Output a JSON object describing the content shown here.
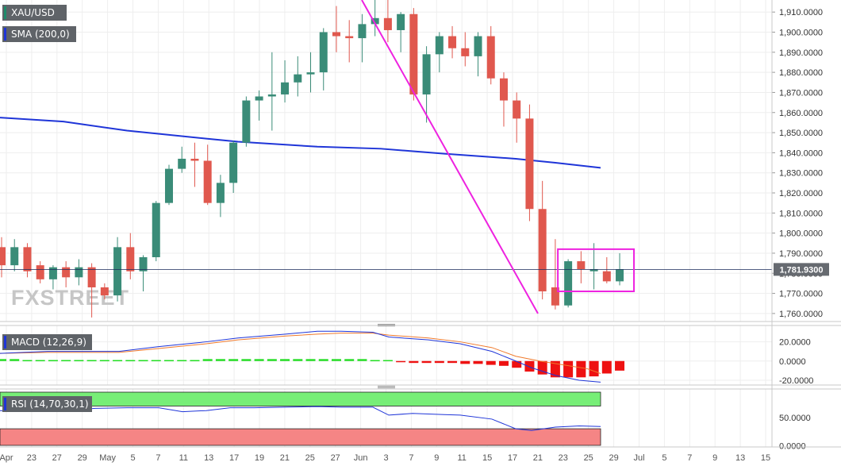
{
  "legend": {
    "symbol": "XAU/USD",
    "sma": "SMA (200,0)",
    "macd": "MACD (12,26,9)",
    "rsi": "RSI (14,70,30,1)"
  },
  "current_price_label": "1,781.9300",
  "watermark": "FXSTREET",
  "colors": {
    "up": "#3a8c78",
    "down": "#e0584e",
    "sma": "#1f35d8",
    "trendline": "#ee22e0",
    "macd_line": "#1f35d8",
    "signal_line": "#f07a2c",
    "hist_up": "#22dd22",
    "hist_down": "#ee1111",
    "rsi_line": "#1f35d8",
    "overbought_fill": "#77ee77",
    "oversold_fill": "#f58585",
    "legend_bg": "#5f6368"
  },
  "chart_data": [
    {
      "type": "candlestick",
      "symbol": "XAU/USD",
      "timeframe": "daily",
      "y_axis_ticks": [
        "1,760.0000",
        "1,770.0000",
        "1,780.0000",
        "1,790.0000",
        "1,800.0000",
        "1,810.0000",
        "1,820.0000",
        "1,830.0000",
        "1,840.0000",
        "1,850.0000",
        "1,860.0000",
        "1,870.0000",
        "1,880.0000",
        "1,890.0000",
        "1,900.0000",
        "1,910.0000"
      ],
      "ylim": [
        1756,
        1916
      ],
      "x_axis_ticks": [
        "Apr",
        "23",
        "27",
        "29",
        "May",
        "5",
        "7",
        "11",
        "13",
        "17",
        "19",
        "21",
        "25",
        "27",
        "Jun",
        "3",
        "7",
        "9",
        "11",
        "15",
        "17",
        "21",
        "23",
        "25",
        "29",
        "Jul",
        "5",
        "7",
        "9",
        "13",
        "15"
      ],
      "candles": [
        {
          "o": 1793,
          "h": 1798,
          "l": 1778,
          "c": 1784
        },
        {
          "o": 1784,
          "h": 1797,
          "l": 1781,
          "c": 1793
        },
        {
          "o": 1793,
          "h": 1795,
          "l": 1778,
          "c": 1781
        },
        {
          "o": 1784,
          "h": 1786,
          "l": 1775,
          "c": 1777
        },
        {
          "o": 1777,
          "h": 1784,
          "l": 1772,
          "c": 1783
        },
        {
          "o": 1783,
          "h": 1786,
          "l": 1773,
          "c": 1778
        },
        {
          "o": 1778,
          "h": 1787,
          "l": 1774,
          "c": 1783
        },
        {
          "o": 1783,
          "h": 1785,
          "l": 1758,
          "c": 1773
        },
        {
          "o": 1773,
          "h": 1775,
          "l": 1767,
          "c": 1769
        },
        {
          "o": 1769,
          "h": 1798,
          "l": 1766,
          "c": 1793
        },
        {
          "o": 1793,
          "h": 1800,
          "l": 1777,
          "c": 1781
        },
        {
          "o": 1781,
          "h": 1789,
          "l": 1771,
          "c": 1788
        },
        {
          "o": 1788,
          "h": 1816,
          "l": 1786,
          "c": 1815
        },
        {
          "o": 1815,
          "h": 1834,
          "l": 1814,
          "c": 1832
        },
        {
          "o": 1832,
          "h": 1843,
          "l": 1830,
          "c": 1837
        },
        {
          "o": 1837,
          "h": 1845,
          "l": 1823,
          "c": 1836
        },
        {
          "o": 1836,
          "h": 1844,
          "l": 1814,
          "c": 1815
        },
        {
          "o": 1815,
          "h": 1829,
          "l": 1808,
          "c": 1825
        },
        {
          "o": 1825,
          "h": 1846,
          "l": 1820,
          "c": 1845
        },
        {
          "o": 1845,
          "h": 1868,
          "l": 1843,
          "c": 1866
        },
        {
          "o": 1866,
          "h": 1871,
          "l": 1856,
          "c": 1868
        },
        {
          "o": 1868,
          "h": 1890,
          "l": 1851,
          "c": 1869
        },
        {
          "o": 1869,
          "h": 1886,
          "l": 1865,
          "c": 1875
        },
        {
          "o": 1875,
          "h": 1888,
          "l": 1868,
          "c": 1879
        },
        {
          "o": 1879,
          "h": 1890,
          "l": 1870,
          "c": 1880
        },
        {
          "o": 1880,
          "h": 1902,
          "l": 1871,
          "c": 1900
        },
        {
          "o": 1900,
          "h": 1913,
          "l": 1890,
          "c": 1898
        },
        {
          "o": 1898,
          "h": 1906,
          "l": 1885,
          "c": 1897
        },
        {
          "o": 1897,
          "h": 1909,
          "l": 1885,
          "c": 1904
        },
        {
          "o": 1904,
          "h": 1916,
          "l": 1898,
          "c": 1907
        },
        {
          "o": 1907,
          "h": 1917,
          "l": 1895,
          "c": 1901
        },
        {
          "o": 1901,
          "h": 1910,
          "l": 1890,
          "c": 1909
        },
        {
          "o": 1909,
          "h": 1912,
          "l": 1866,
          "c": 1869
        },
        {
          "o": 1869,
          "h": 1893,
          "l": 1855,
          "c": 1889
        },
        {
          "o": 1889,
          "h": 1900,
          "l": 1880,
          "c": 1898
        },
        {
          "o": 1898,
          "h": 1903,
          "l": 1887,
          "c": 1892
        },
        {
          "o": 1892,
          "h": 1900,
          "l": 1883,
          "c": 1888
        },
        {
          "o": 1888,
          "h": 1900,
          "l": 1878,
          "c": 1898
        },
        {
          "o": 1898,
          "h": 1903,
          "l": 1874,
          "c": 1877
        },
        {
          "o": 1877,
          "h": 1880,
          "l": 1853,
          "c": 1866
        },
        {
          "o": 1866,
          "h": 1870,
          "l": 1845,
          "c": 1857
        },
        {
          "o": 1857,
          "h": 1864,
          "l": 1806,
          "c": 1812
        },
        {
          "o": 1812,
          "h": 1826,
          "l": 1767,
          "c": 1771
        },
        {
          "o": 1773,
          "h": 1797,
          "l": 1762,
          "c": 1764
        },
        {
          "o": 1764,
          "h": 1787,
          "l": 1763,
          "c": 1786
        },
        {
          "o": 1786,
          "h": 1791,
          "l": 1775,
          "c": 1782
        },
        {
          "o": 1781,
          "h": 1795,
          "l": 1772,
          "c": 1782
        },
        {
          "o": 1781,
          "h": 1788,
          "l": 1775,
          "c": 1776
        },
        {
          "o": 1776,
          "h": 1790,
          "l": 1774,
          "c": 1782
        }
      ],
      "sma_200": {
        "name": "SMA (200,0)",
        "values": [
          [
            0,
            1857.5
          ],
          [
            80,
            1855.5
          ],
          [
            160,
            1851
          ],
          [
            260,
            1847
          ],
          [
            300,
            1845.5
          ],
          [
            400,
            1843
          ],
          [
            480,
            1842
          ],
          [
            560,
            1839.5
          ],
          [
            650,
            1837
          ],
          [
            700,
            1835
          ],
          [
            757,
            1832.5
          ]
        ]
      },
      "trendline": {
        "from": [
          456,
          1916
        ],
        "to": [
          678,
          1760
        ]
      },
      "consolidation_box": {
        "from_candle": 44,
        "to_candle": 48,
        "high": 1792,
        "low": 1771
      },
      "last_price": 1781.93
    },
    {
      "type": "macd",
      "name": "MACD (12,26,9)",
      "y_axis_ticks": [
        "20.0000",
        "0.0000",
        "-20.0000"
      ],
      "ylim": [
        -25,
        37
      ],
      "macd_line": [
        [
          0,
          8
        ],
        [
          60,
          10
        ],
        [
          150,
          10
        ],
        [
          200,
          15
        ],
        [
          260,
          20
        ],
        [
          300,
          24
        ],
        [
          360,
          28
        ],
        [
          400,
          31
        ],
        [
          430,
          31
        ],
        [
          470,
          30
        ],
        [
          490,
          25
        ],
        [
          540,
          22
        ],
        [
          580,
          18
        ],
        [
          620,
          10
        ],
        [
          650,
          0
        ],
        [
          670,
          -7
        ],
        [
          700,
          -15
        ],
        [
          730,
          -20
        ],
        [
          757,
          -22
        ]
      ],
      "signal_line": [
        [
          0,
          8
        ],
        [
          60,
          9
        ],
        [
          150,
          9
        ],
        [
          200,
          13
        ],
        [
          260,
          18
        ],
        [
          300,
          22
        ],
        [
          360,
          26
        ],
        [
          400,
          28
        ],
        [
          430,
          29
        ],
        [
          470,
          29
        ],
        [
          490,
          27
        ],
        [
          540,
          24
        ],
        [
          580,
          20
        ],
        [
          620,
          14
        ],
        [
          650,
          5
        ],
        [
          680,
          0
        ],
        [
          710,
          -4
        ],
        [
          740,
          -8
        ],
        [
          757,
          -13
        ]
      ],
      "histogram": [
        2,
        2,
        1,
        1,
        1,
        1,
        1,
        1,
        1,
        1,
        1,
        1,
        1,
        1,
        1,
        1,
        2,
        2,
        2,
        2,
        2,
        2,
        2,
        2,
        2,
        2,
        2,
        2,
        2,
        1,
        1,
        -1,
        -2,
        -2,
        -2,
        -2,
        -3,
        -3,
        -4,
        -5,
        -7,
        -11,
        -14,
        -17,
        -17,
        -17,
        -16,
        -13,
        -10
      ]
    },
    {
      "type": "rsi",
      "name": "RSI (14,70,30,1)",
      "y_axis_ticks": [
        "50.0000",
        "0.0000"
      ],
      "ylim": [
        -2,
        100
      ],
      "overbought": 70,
      "oversold": 30,
      "rsi_line": [
        [
          0,
          62
        ],
        [
          40,
          61
        ],
        [
          80,
          62
        ],
        [
          120,
          66
        ],
        [
          160,
          67
        ],
        [
          200,
          67
        ],
        [
          230,
          60
        ],
        [
          260,
          62
        ],
        [
          290,
          67
        ],
        [
          320,
          67
        ],
        [
          360,
          68
        ],
        [
          400,
          69
        ],
        [
          430,
          68
        ],
        [
          470,
          68
        ],
        [
          490,
          54
        ],
        [
          520,
          57
        ],
        [
          560,
          55
        ],
        [
          580,
          54
        ],
        [
          620,
          47
        ],
        [
          650,
          30
        ],
        [
          670,
          27
        ],
        [
          700,
          33
        ],
        [
          730,
          35
        ],
        [
          757,
          34
        ]
      ]
    }
  ]
}
